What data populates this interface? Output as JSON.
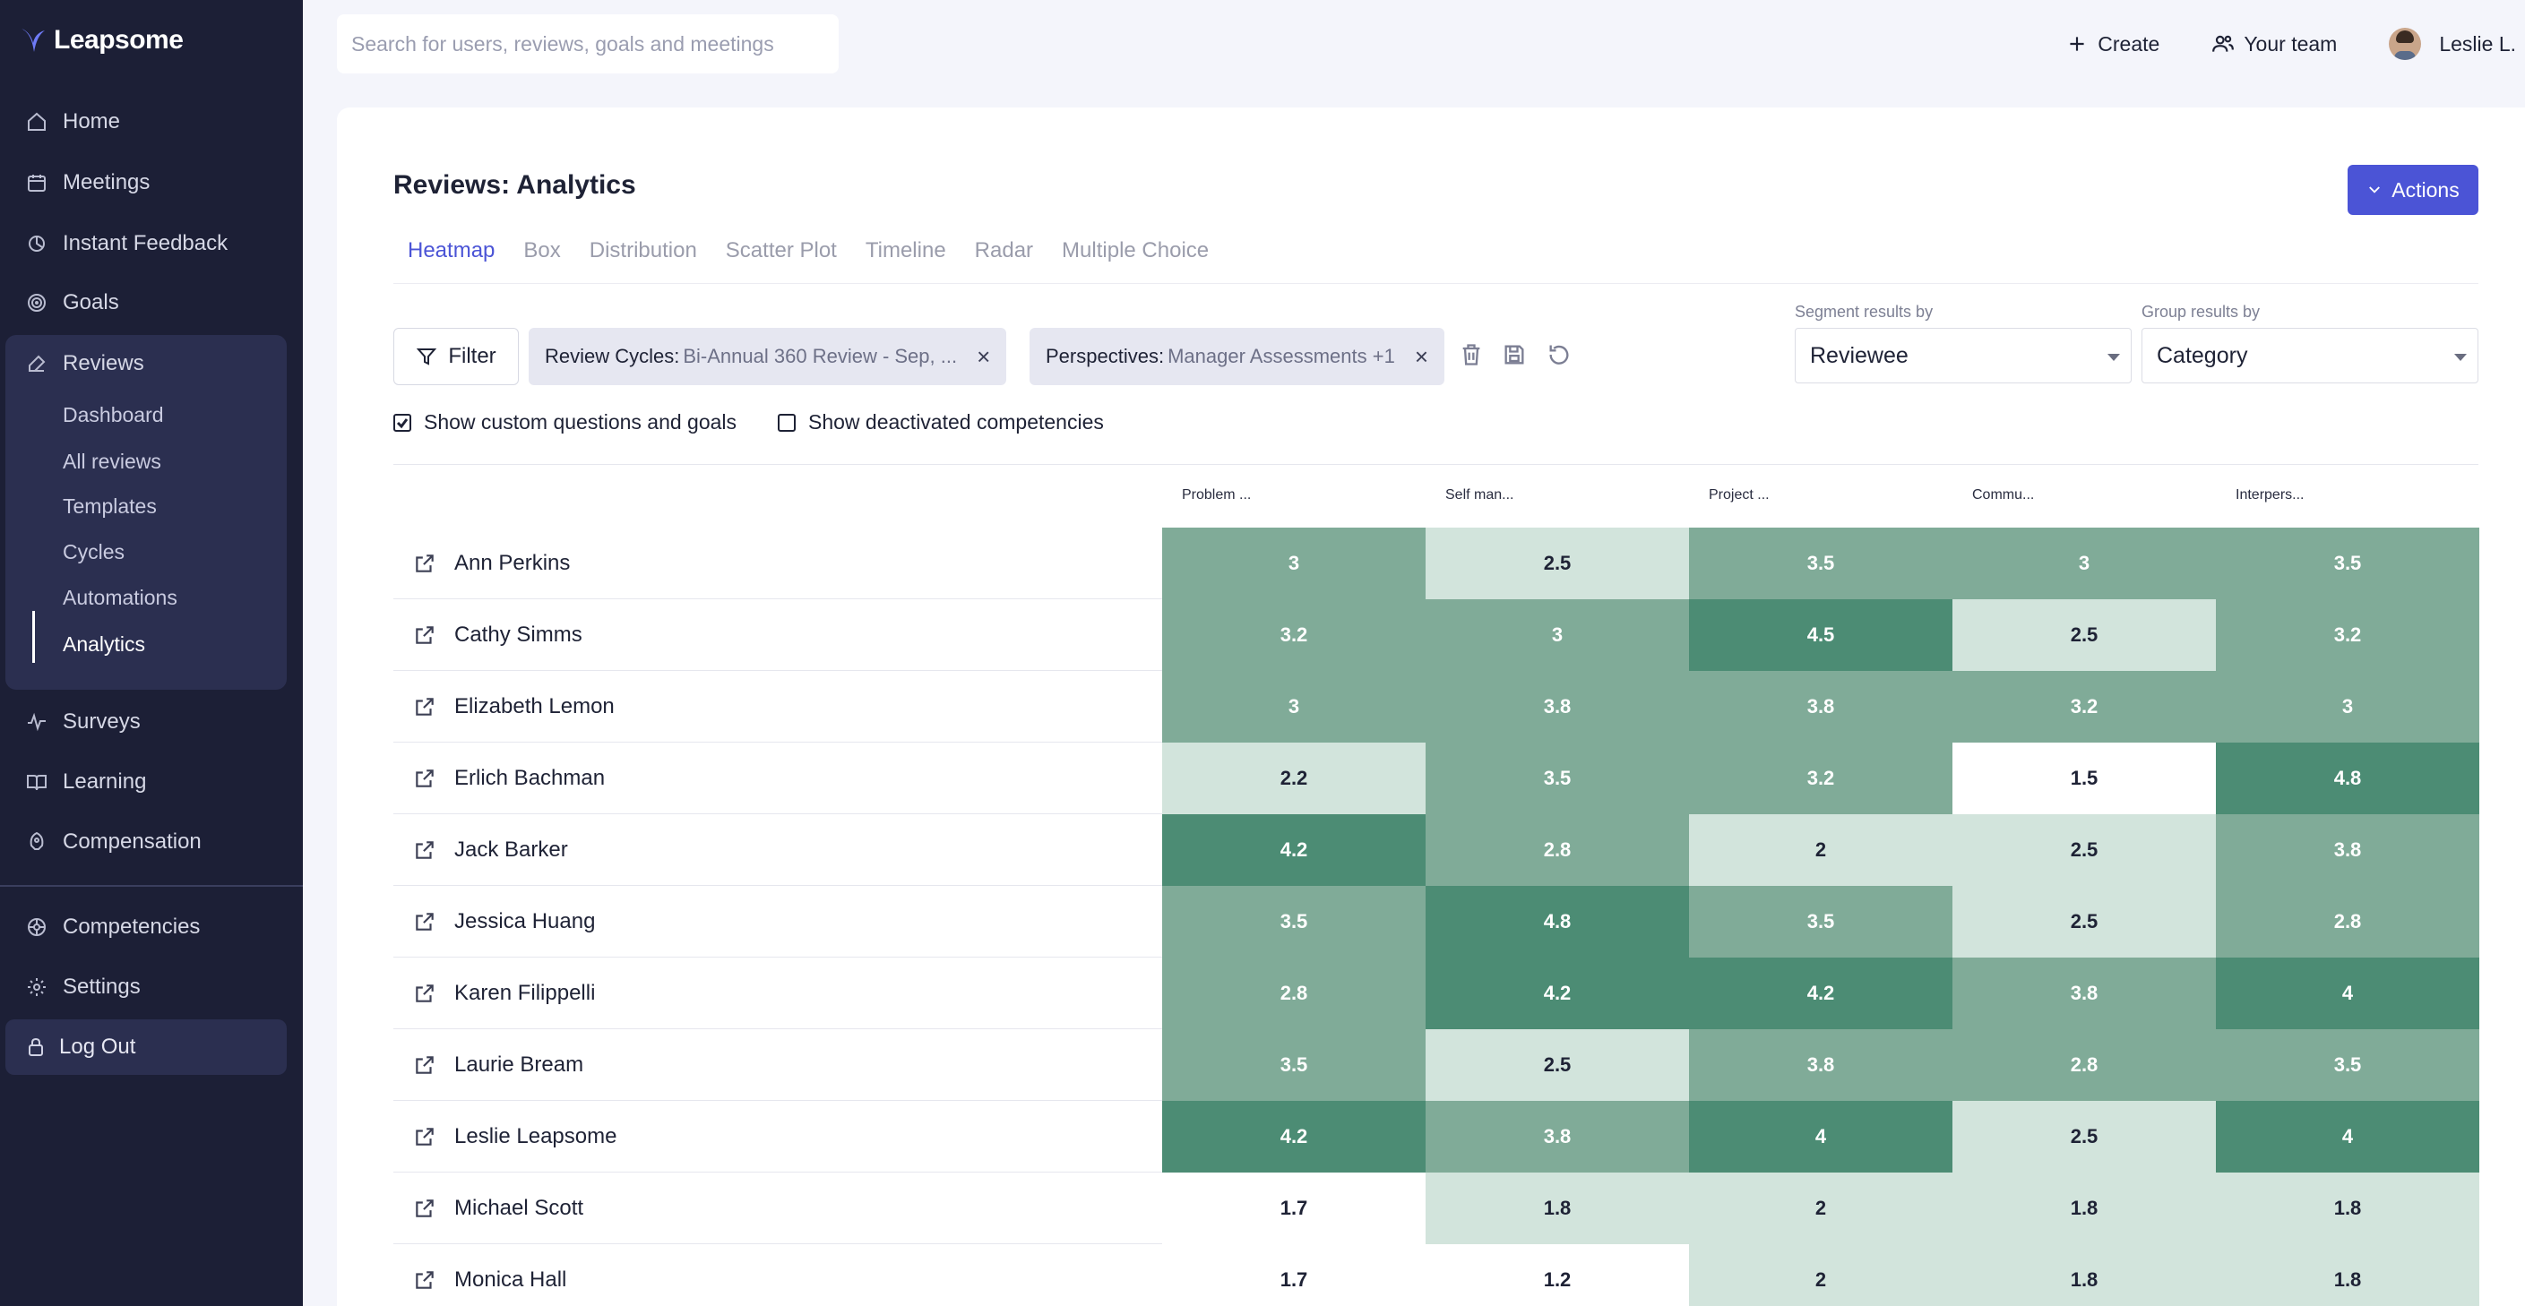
{
  "brand": {
    "name": "Leapsome"
  },
  "sidebar": {
    "items": [
      {
        "label": "Home",
        "icon": "home-icon"
      },
      {
        "label": "Meetings",
        "icon": "calendar-icon"
      },
      {
        "label": "Instant Feedback",
        "icon": "feedback-icon"
      },
      {
        "label": "Goals",
        "icon": "target-icon"
      },
      {
        "label": "Reviews",
        "icon": "edit-icon"
      }
    ],
    "reviews_subitems": [
      "Dashboard",
      "All reviews",
      "Templates",
      "Cycles",
      "Automations",
      "Analytics"
    ],
    "lower_items": [
      {
        "label": "Surveys",
        "icon": "pulse-icon"
      },
      {
        "label": "Learning",
        "icon": "book-icon"
      },
      {
        "label": "Compensation",
        "icon": "rocket-icon"
      }
    ],
    "bottom_items": [
      {
        "label": "Competencies",
        "icon": "competencies-icon"
      },
      {
        "label": "Settings",
        "icon": "gear-icon"
      }
    ],
    "logout": "Log Out"
  },
  "topbar": {
    "search_placeholder": "Search for users, reviews, goals and meetings",
    "create": "Create",
    "your_team": "Your team",
    "user": "Leslie L."
  },
  "page": {
    "title": "Reviews: Analytics",
    "actions": "Actions",
    "tabs": [
      "Heatmap",
      "Box",
      "Distribution",
      "Scatter Plot",
      "Timeline",
      "Radar",
      "Multiple Choice"
    ],
    "active_tab": "Heatmap"
  },
  "filters": {
    "filter_button": "Filter",
    "chip1_key": "Review Cycles:",
    "chip1_value": "Bi-Annual 360 Review - Sep, ...",
    "chip2_key": "Perspectives:",
    "chip2_value": "Manager Assessments +1",
    "segment_label": "Segment results by",
    "segment_value": "Reviewee",
    "group_label": "Group results by",
    "group_value": "Category",
    "show_custom": "Show custom questions and goals",
    "show_custom_checked": true,
    "show_deactivated": "Show deactivated competencies",
    "show_deactivated_checked": false
  },
  "heatmap": {
    "columns": [
      "Problem ...",
      "Self man...",
      "Project ...",
      "Commu...",
      "Interpers..."
    ],
    "rows": [
      {
        "name": "Ann Perkins",
        "values": [
          "3",
          "2.5",
          "3.5",
          "3",
          "3.5"
        ]
      },
      {
        "name": "Cathy Simms",
        "values": [
          "3.2",
          "3",
          "4.5",
          "2.5",
          "3.2"
        ]
      },
      {
        "name": "Elizabeth Lemon",
        "values": [
          "3",
          "3.8",
          "3.8",
          "3.2",
          "3"
        ]
      },
      {
        "name": "Erlich Bachman",
        "values": [
          "2.2",
          "3.5",
          "3.2",
          "1.5",
          "4.8"
        ]
      },
      {
        "name": "Jack Barker",
        "values": [
          "4.2",
          "2.8",
          "2",
          "2.5",
          "3.8"
        ]
      },
      {
        "name": "Jessica Huang",
        "values": [
          "3.5",
          "4.8",
          "3.5",
          "2.5",
          "2.8"
        ]
      },
      {
        "name": "Karen Filippelli",
        "values": [
          "2.8",
          "4.2",
          "4.2",
          "3.8",
          "4"
        ]
      },
      {
        "name": "Laurie Bream",
        "values": [
          "3.5",
          "2.5",
          "3.8",
          "2.8",
          "3.5"
        ]
      },
      {
        "name": "Leslie Leapsome",
        "values": [
          "4.2",
          "3.8",
          "4",
          "2.5",
          "4"
        ]
      },
      {
        "name": "Michael Scott",
        "values": [
          "1.7",
          "1.8",
          "2",
          "1.8",
          "1.8"
        ]
      },
      {
        "name": "Monica Hall",
        "values": [
          "1.7",
          "1.2",
          "2",
          "1.8",
          "1.8"
        ]
      }
    ],
    "colors": {
      "white": "#ffffff",
      "light": "#d2e4dc",
      "mid": "#80ab98",
      "dark": "#4c8c74"
    }
  }
}
